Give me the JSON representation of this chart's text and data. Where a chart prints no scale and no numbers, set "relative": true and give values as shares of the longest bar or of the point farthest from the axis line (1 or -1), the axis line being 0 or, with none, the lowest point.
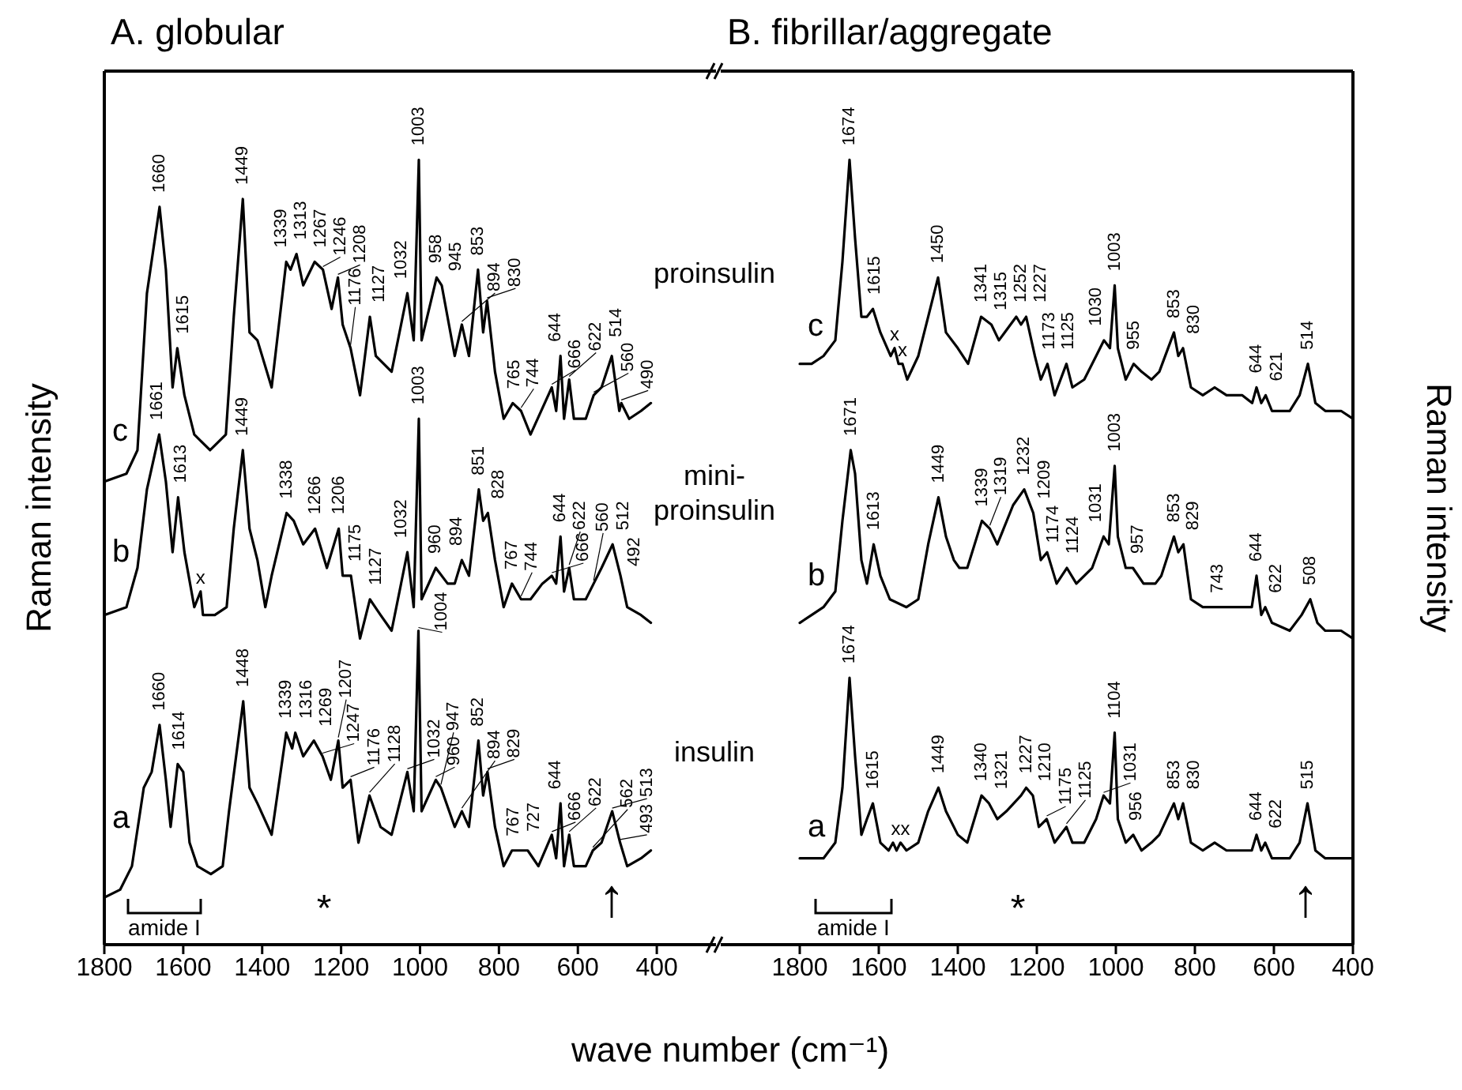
{
  "chart_data": [
    {
      "type": "line",
      "title": "A. globular",
      "xlabel": "wave number (cm⁻¹)",
      "ylabel": "Raman intensity",
      "relative": true,
      "xlim": [
        1800,
        250
      ],
      "xticks": [
        1800,
        1600,
        1400,
        1200,
        1000,
        800,
        600,
        400
      ],
      "marker": "none",
      "series": [
        {
          "name": "c",
          "color": "#000000",
          "x": [
            1800,
            1744,
            1716,
            1692,
            1660,
            1644,
            1627,
            1615,
            1597,
            1572,
            1532,
            1492,
            1472,
            1449,
            1432,
            1412,
            1376,
            1339,
            1328,
            1313,
            1296,
            1267,
            1246,
            1224,
            1208,
            1196,
            1176,
            1152,
            1127,
            1112,
            1072,
            1032,
            1016,
            1003,
            996,
            958,
            945,
            912,
            894,
            876,
            853,
            840,
            830,
            810,
            788,
            765,
            744,
            720,
            666,
            655,
            644,
            635,
            622,
            610,
            580,
            560,
            540,
            514,
            495,
            490,
            470,
            440,
            415
          ],
          "values": [
            0.59,
            0.6,
            0.63,
            0.83,
            0.94,
            0.86,
            0.71,
            0.76,
            0.7,
            0.65,
            0.63,
            0.65,
            0.8,
            0.95,
            0.78,
            0.77,
            0.71,
            0.87,
            0.86,
            0.88,
            0.84,
            0.87,
            0.86,
            0.81,
            0.85,
            0.79,
            0.76,
            0.7,
            0.8,
            0.75,
            0.73,
            0.83,
            0.77,
            1.0,
            0.77,
            0.85,
            0.84,
            0.75,
            0.79,
            0.75,
            0.86,
            0.78,
            0.82,
            0.73,
            0.67,
            0.69,
            0.68,
            0.65,
            0.71,
            0.68,
            0.75,
            0.67,
            0.72,
            0.67,
            0.67,
            0.7,
            0.71,
            0.75,
            0.68,
            0.69,
            0.67,
            0.68,
            0.69
          ]
        },
        {
          "name": "b",
          "color": "#000000",
          "x": [
            1800,
            1744,
            1716,
            1692,
            1661,
            1644,
            1627,
            1613,
            1597,
            1572,
            1556,
            1550,
            1520,
            1490,
            1472,
            1449,
            1432,
            1412,
            1392,
            1376,
            1338,
            1320,
            1296,
            1266,
            1236,
            1206,
            1196,
            1175,
            1152,
            1127,
            1100,
            1072,
            1032,
            1016,
            1003,
            996,
            960,
            930,
            912,
            894,
            876,
            851,
            840,
            828,
            810,
            788,
            767,
            744,
            720,
            690,
            666,
            655,
            644,
            635,
            622,
            610,
            580,
            560,
            540,
            512,
            492,
            475,
            440,
            415
          ],
          "values": [
            0.42,
            0.43,
            0.48,
            0.58,
            0.65,
            0.59,
            0.5,
            0.57,
            0.5,
            0.43,
            0.45,
            0.42,
            0.42,
            0.43,
            0.53,
            0.63,
            0.53,
            0.49,
            0.43,
            0.47,
            0.55,
            0.54,
            0.51,
            0.53,
            0.48,
            0.53,
            0.47,
            0.47,
            0.39,
            0.44,
            0.42,
            0.4,
            0.5,
            0.43,
            0.67,
            0.44,
            0.48,
            0.46,
            0.46,
            0.49,
            0.47,
            0.58,
            0.54,
            0.55,
            0.49,
            0.43,
            0.46,
            0.44,
            0.44,
            0.46,
            0.47,
            0.46,
            0.52,
            0.45,
            0.48,
            0.44,
            0.44,
            0.46,
            0.48,
            0.51,
            0.47,
            0.43,
            0.42,
            0.41
          ]
        },
        {
          "name": "a",
          "color": "#000000",
          "x": [
            1800,
            1760,
            1730,
            1700,
            1680,
            1660,
            1644,
            1632,
            1614,
            1600,
            1584,
            1564,
            1530,
            1500,
            1484,
            1448,
            1432,
            1412,
            1376,
            1339,
            1324,
            1316,
            1296,
            1269,
            1247,
            1226,
            1207,
            1196,
            1176,
            1156,
            1128,
            1100,
            1072,
            1032,
            1016,
            1004,
            996,
            960,
            947,
            912,
            894,
            876,
            852,
            840,
            829,
            810,
            788,
            767,
            727,
            700,
            666,
            655,
            644,
            635,
            622,
            610,
            580,
            562,
            540,
            513,
            493,
            475,
            440,
            415
          ],
          "values": [
            0.06,
            0.07,
            0.1,
            0.2,
            0.22,
            0.28,
            0.21,
            0.15,
            0.23,
            0.22,
            0.13,
            0.1,
            0.09,
            0.1,
            0.17,
            0.31,
            0.2,
            0.18,
            0.14,
            0.27,
            0.25,
            0.27,
            0.24,
            0.26,
            0.24,
            0.21,
            0.26,
            0.2,
            0.21,
            0.13,
            0.19,
            0.15,
            0.14,
            0.22,
            0.17,
            0.4,
            0.17,
            0.21,
            0.2,
            0.15,
            0.17,
            0.15,
            0.26,
            0.19,
            0.22,
            0.15,
            0.1,
            0.12,
            0.12,
            0.1,
            0.14,
            0.11,
            0.18,
            0.1,
            0.14,
            0.1,
            0.1,
            0.12,
            0.13,
            0.17,
            0.13,
            0.1,
            0.11,
            0.12
          ]
        }
      ],
      "annotations": [
        "proinsulin",
        "mini-proinsulin",
        "insulin",
        "amide I",
        "*",
        "↑",
        {
          "text": "1660",
          "x": 1660,
          "y": 0.94
        },
        {
          "text": "1615",
          "x": 1615,
          "y": 0.76
        },
        {
          "text": "1449",
          "x": 1449,
          "y": 0.95
        },
        {
          "text": "1339",
          "x": 1339,
          "y": 0.87
        },
        {
          "text": "1313",
          "x": 1313,
          "y": 0.88
        },
        {
          "text": "1267",
          "x": 1267,
          "y": 0.87
        },
        {
          "text": "1246",
          "x": 1246,
          "y": 0.86
        },
        {
          "text": "1208",
          "x": 1208,
          "y": 0.85
        },
        {
          "text": "1176",
          "x": 1176,
          "y": 0.76
        },
        {
          "text": "1127",
          "x": 1127,
          "y": 0.8
        },
        {
          "text": "1032",
          "x": 1032,
          "y": 0.83
        },
        {
          "text": "1003",
          "x": 1003,
          "y": 1.0
        },
        {
          "text": "958",
          "x": 958,
          "y": 0.85
        },
        {
          "text": "945",
          "x": 945,
          "y": 0.84
        },
        {
          "text": "894",
          "x": 894,
          "y": 0.79
        },
        {
          "text": "853",
          "x": 853,
          "y": 0.86
        },
        {
          "text": "830",
          "x": 830,
          "y": 0.82
        },
        {
          "text": "765",
          "x": 765,
          "y": 0.69
        },
        {
          "text": "744",
          "x": 744,
          "y": 0.68
        },
        {
          "text": "666",
          "x": 666,
          "y": 0.71
        },
        {
          "text": "644",
          "x": 644,
          "y": 0.75
        },
        {
          "text": "622",
          "x": 622,
          "y": 0.72
        },
        {
          "text": "560",
          "x": 560,
          "y": 0.7
        },
        {
          "text": "514",
          "x": 514,
          "y": 0.75
        },
        {
          "text": "490",
          "x": 490,
          "y": 0.69
        },
        {
          "text": "1661",
          "x": 1661,
          "y": 0.65
        },
        {
          "text": "1613",
          "x": 1613,
          "y": 0.57
        },
        {
          "text": "1449",
          "x": 1449,
          "y": 0.63
        },
        {
          "text": "1338",
          "x": 1338,
          "y": 0.55
        },
        {
          "text": "1266",
          "x": 1266,
          "y": 0.53
        },
        {
          "text": "1206",
          "x": 1206,
          "y": 0.53
        },
        {
          "text": "1175",
          "x": 1175,
          "y": 0.47
        },
        {
          "text": "1127",
          "x": 1127,
          "y": 0.44
        },
        {
          "text": "1032",
          "x": 1032,
          "y": 0.5
        },
        {
          "text": "1003",
          "x": 1003,
          "y": 0.67
        },
        {
          "text": "960",
          "x": 960,
          "y": 0.48
        },
        {
          "text": "894",
          "x": 894,
          "y": 0.49
        },
        {
          "text": "851",
          "x": 851,
          "y": 0.58
        },
        {
          "text": "828",
          "x": 828,
          "y": 0.55
        },
        {
          "text": "767",
          "x": 767,
          "y": 0.46
        },
        {
          "text": "744",
          "x": 744,
          "y": 0.44
        },
        {
          "text": "666",
          "x": 666,
          "y": 0.47
        },
        {
          "text": "644",
          "x": 644,
          "y": 0.52
        },
        {
          "text": "622",
          "x": 622,
          "y": 0.48
        },
        {
          "text": "560",
          "x": 560,
          "y": 0.46
        },
        {
          "text": "512",
          "x": 512,
          "y": 0.51
        },
        {
          "text": "492",
          "x": 492,
          "y": 0.47
        },
        {
          "text": "x",
          "x": 1556,
          "y": 0.45
        },
        {
          "text": "1660",
          "x": 1660,
          "y": 0.28
        },
        {
          "text": "1614",
          "x": 1614,
          "y": 0.23
        },
        {
          "text": "1448",
          "x": 1448,
          "y": 0.31
        },
        {
          "text": "1339",
          "x": 1339,
          "y": 0.27
        },
        {
          "text": "1316",
          "x": 1316,
          "y": 0.27
        },
        {
          "text": "1269",
          "x": 1269,
          "y": 0.26
        },
        {
          "text": "1247",
          "x": 1247,
          "y": 0.24
        },
        {
          "text": "1207",
          "x": 1207,
          "y": 0.26
        },
        {
          "text": "1176",
          "x": 1176,
          "y": 0.21
        },
        {
          "text": "1128",
          "x": 1128,
          "y": 0.19
        },
        {
          "text": "1032",
          "x": 1032,
          "y": 0.22
        },
        {
          "text": "1004",
          "x": 1004,
          "y": 0.4
        },
        {
          "text": "960",
          "x": 960,
          "y": 0.21
        },
        {
          "text": "947",
          "x": 947,
          "y": 0.2
        },
        {
          "text": "894",
          "x": 894,
          "y": 0.17
        },
        {
          "text": "852",
          "x": 852,
          "y": 0.26
        },
        {
          "text": "829",
          "x": 829,
          "y": 0.22
        },
        {
          "text": "767",
          "x": 767,
          "y": 0.12
        },
        {
          "text": "727",
          "x": 727,
          "y": 0.12
        },
        {
          "text": "666",
          "x": 666,
          "y": 0.14
        },
        {
          "text": "644",
          "x": 644,
          "y": 0.18
        },
        {
          "text": "622",
          "x": 622,
          "y": 0.14
        },
        {
          "text": "562",
          "x": 562,
          "y": 0.12
        },
        {
          "text": "513",
          "x": 513,
          "y": 0.17
        },
        {
          "text": "493",
          "x": 493,
          "y": 0.13
        }
      ]
    },
    {
      "type": "line",
      "title": "B. fibrillar/aggregate",
      "ylabel": "Raman intensity",
      "relative": true,
      "xlim": [
        2000,
        400
      ],
      "xticks": [
        1800,
        1600,
        1400,
        1200,
        1000,
        800,
        600,
        400
      ],
      "marker": "none",
      "series": [
        {
          "name": "c",
          "color": "#000000",
          "x": [
            1800,
            1770,
            1740,
            1710,
            1692,
            1674,
            1660,
            1644,
            1630,
            1615,
            1596,
            1570,
            1560,
            1550,
            1540,
            1528,
            1500,
            1475,
            1450,
            1430,
            1400,
            1374,
            1341,
            1315,
            1296,
            1252,
            1240,
            1227,
            1205,
            1190,
            1173,
            1155,
            1125,
            1110,
            1080,
            1050,
            1030,
            1015,
            1003,
            995,
            975,
            955,
            935,
            910,
            890,
            853,
            842,
            830,
            810,
            780,
            750,
            720,
            680,
            655,
            644,
            632,
            621,
            605,
            560,
            535,
            514,
            495,
            470,
            430,
            400
          ],
          "values": [
            0.74,
            0.74,
            0.75,
            0.77,
            0.87,
            1.0,
            0.9,
            0.8,
            0.8,
            0.81,
            0.78,
            0.75,
            0.76,
            0.74,
            0.74,
            0.72,
            0.75,
            0.8,
            0.85,
            0.78,
            0.76,
            0.74,
            0.8,
            0.79,
            0.77,
            0.8,
            0.79,
            0.8,
            0.75,
            0.72,
            0.74,
            0.7,
            0.74,
            0.71,
            0.72,
            0.75,
            0.77,
            0.76,
            0.84,
            0.76,
            0.72,
            0.74,
            0.73,
            0.72,
            0.73,
            0.78,
            0.75,
            0.76,
            0.71,
            0.7,
            0.71,
            0.7,
            0.7,
            0.69,
            0.71,
            0.69,
            0.7,
            0.68,
            0.68,
            0.7,
            0.74,
            0.69,
            0.68,
            0.68,
            0.67
          ]
        },
        {
          "name": "b",
          "color": "#000000",
          "x": [
            1800,
            1770,
            1740,
            1710,
            1692,
            1671,
            1660,
            1644,
            1630,
            1613,
            1596,
            1572,
            1530,
            1500,
            1475,
            1449,
            1430,
            1410,
            1396,
            1376,
            1339,
            1319,
            1300,
            1260,
            1232,
            1209,
            1190,
            1174,
            1150,
            1124,
            1100,
            1060,
            1031,
            1018,
            1003,
            995,
            975,
            957,
            930,
            900,
            885,
            853,
            842,
            829,
            810,
            780,
            743,
            720,
            680,
            656,
            644,
            632,
            622,
            605,
            560,
            530,
            508,
            490,
            470,
            430,
            400
          ],
          "values": [
            0.41,
            0.42,
            0.43,
            0.45,
            0.54,
            0.63,
            0.6,
            0.49,
            0.46,
            0.51,
            0.47,
            0.44,
            0.43,
            0.44,
            0.51,
            0.57,
            0.52,
            0.49,
            0.48,
            0.48,
            0.54,
            0.53,
            0.51,
            0.56,
            0.58,
            0.55,
            0.49,
            0.5,
            0.46,
            0.48,
            0.46,
            0.48,
            0.52,
            0.51,
            0.61,
            0.52,
            0.48,
            0.48,
            0.46,
            0.46,
            0.47,
            0.52,
            0.5,
            0.51,
            0.44,
            0.43,
            0.43,
            0.43,
            0.43,
            0.43,
            0.47,
            0.42,
            0.43,
            0.41,
            0.4,
            0.42,
            0.44,
            0.41,
            0.4,
            0.4,
            0.39
          ]
        },
        {
          "name": "a",
          "color": "#000000",
          "x": [
            1800,
            1770,
            1740,
            1710,
            1692,
            1674,
            1660,
            1644,
            1630,
            1615,
            1596,
            1575,
            1564,
            1555,
            1545,
            1530,
            1500,
            1475,
            1449,
            1430,
            1400,
            1376,
            1340,
            1321,
            1300,
            1277,
            1240,
            1227,
            1210,
            1195,
            1175,
            1155,
            1125,
            1110,
            1080,
            1050,
            1031,
            1015,
            1003,
            995,
            975,
            956,
            935,
            910,
            890,
            853,
            842,
            830,
            810,
            780,
            750,
            720,
            680,
            656,
            644,
            632,
            622,
            605,
            560,
            535,
            515,
            495,
            470,
            430,
            400
          ],
          "values": [
            0.11,
            0.11,
            0.11,
            0.13,
            0.2,
            0.34,
            0.24,
            0.14,
            0.16,
            0.18,
            0.13,
            0.12,
            0.13,
            0.12,
            0.13,
            0.12,
            0.13,
            0.17,
            0.2,
            0.17,
            0.14,
            0.13,
            0.19,
            0.18,
            0.16,
            0.17,
            0.19,
            0.2,
            0.19,
            0.15,
            0.16,
            0.13,
            0.15,
            0.13,
            0.13,
            0.16,
            0.19,
            0.18,
            0.27,
            0.16,
            0.13,
            0.14,
            0.12,
            0.13,
            0.14,
            0.18,
            0.16,
            0.18,
            0.13,
            0.12,
            0.13,
            0.12,
            0.12,
            0.12,
            0.14,
            0.12,
            0.13,
            0.11,
            0.11,
            0.13,
            0.18,
            0.12,
            0.11,
            0.11,
            0.11
          ]
        }
      ],
      "annotations": [
        "amide I",
        "*",
        "↑",
        {
          "text": "1674",
          "x": 1674,
          "y": 1.0
        },
        {
          "text": "1615",
          "x": 1615,
          "y": 0.81
        },
        {
          "text": "x",
          "x": 1560,
          "y": 0.76
        },
        {
          "text": "x",
          "x": 1540,
          "y": 0.74
        },
        {
          "text": "1450",
          "x": 1450,
          "y": 0.85
        },
        {
          "text": "1341",
          "x": 1341,
          "y": 0.8
        },
        {
          "text": "1315",
          "x": 1315,
          "y": 0.79
        },
        {
          "text": "1252",
          "x": 1252,
          "y": 0.8
        },
        {
          "text": "1227",
          "x": 1227,
          "y": 0.8
        },
        {
          "text": "1173",
          "x": 1173,
          "y": 0.74
        },
        {
          "text": "1125",
          "x": 1125,
          "y": 0.74
        },
        {
          "text": "1030",
          "x": 1030,
          "y": 0.77
        },
        {
          "text": "1003",
          "x": 1003,
          "y": 0.84
        },
        {
          "text": "955",
          "x": 955,
          "y": 0.74
        },
        {
          "text": "853",
          "x": 853,
          "y": 0.78
        },
        {
          "text": "830",
          "x": 830,
          "y": 0.76
        },
        {
          "text": "644",
          "x": 644,
          "y": 0.71
        },
        {
          "text": "621",
          "x": 621,
          "y": 0.7
        },
        {
          "text": "514",
          "x": 514,
          "y": 0.74
        },
        {
          "text": "1671",
          "x": 1671,
          "y": 0.63
        },
        {
          "text": "1613",
          "x": 1613,
          "y": 0.51
        },
        {
          "text": "1449",
          "x": 1449,
          "y": 0.57
        },
        {
          "text": "1339",
          "x": 1339,
          "y": 0.54
        },
        {
          "text": "1319",
          "x": 1319,
          "y": 0.53
        },
        {
          "text": "1232",
          "x": 1232,
          "y": 0.58
        },
        {
          "text": "1209",
          "x": 1209,
          "y": 0.55
        },
        {
          "text": "1174",
          "x": 1174,
          "y": 0.5
        },
        {
          "text": "1124",
          "x": 1124,
          "y": 0.48
        },
        {
          "text": "1031",
          "x": 1031,
          "y": 0.52
        },
        {
          "text": "1003",
          "x": 1003,
          "y": 0.61
        },
        {
          "text": "957",
          "x": 957,
          "y": 0.48
        },
        {
          "text": "853",
          "x": 853,
          "y": 0.52
        },
        {
          "text": "829",
          "x": 829,
          "y": 0.51
        },
        {
          "text": "743",
          "x": 743,
          "y": 0.43
        },
        {
          "text": "644",
          "x": 644,
          "y": 0.47
        },
        {
          "text": "622",
          "x": 622,
          "y": 0.43
        },
        {
          "text": "508",
          "x": 508,
          "y": 0.44
        },
        {
          "text": "1674",
          "x": 1674,
          "y": 0.34
        },
        {
          "text": "1615",
          "x": 1615,
          "y": 0.18
        },
        {
          "text": "xx",
          "x": 1545,
          "y": 0.13
        },
        {
          "text": "1449",
          "x": 1449,
          "y": 0.2
        },
        {
          "text": "1340",
          "x": 1340,
          "y": 0.19
        },
        {
          "text": "1321",
          "x": 1321,
          "y": 0.18
        },
        {
          "text": "1227",
          "x": 1227,
          "y": 0.2
        },
        {
          "text": "1210",
          "x": 1210,
          "y": 0.19
        },
        {
          "text": "1175",
          "x": 1175,
          "y": 0.16
        },
        {
          "text": "1125",
          "x": 1125,
          "y": 0.15
        },
        {
          "text": "1031",
          "x": 1031,
          "y": 0.19
        },
        {
          "text": "1104",
          "x": 1003,
          "y": 0.27
        },
        {
          "text": "956",
          "x": 956,
          "y": 0.14
        },
        {
          "text": "853",
          "x": 853,
          "y": 0.18
        },
        {
          "text": "830",
          "x": 830,
          "y": 0.18
        },
        {
          "text": "644",
          "x": 644,
          "y": 0.14
        },
        {
          "text": "622",
          "x": 622,
          "y": 0.13
        },
        {
          "text": "515",
          "x": 515,
          "y": 0.18
        }
      ]
    }
  ]
}
